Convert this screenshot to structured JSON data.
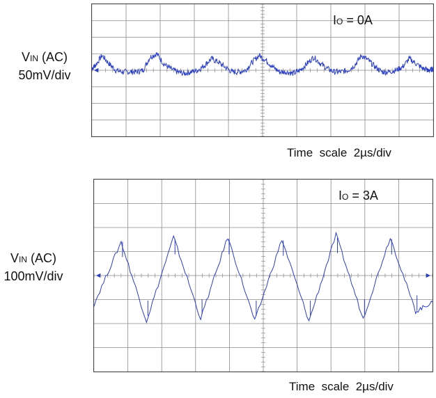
{
  "chart_data": [
    {
      "type": "line",
      "title": "",
      "annotation": {
        "prefix": "I",
        "sub": "O",
        "value": " = 0A"
      },
      "ylabel": {
        "main": "V",
        "sub": "IN",
        "rest": " (AC)",
        "scale": "50mV/div"
      },
      "xlabel": "Time  scale  2µs/div",
      "grid": true,
      "xlim": [
        0,
        10
      ],
      "ylim": [
        -4,
        4
      ],
      "series": [
        {
          "x": [
            0,
            0.1,
            0.3,
            0.5,
            0.7,
            0.9,
            1.1,
            1.3,
            1.5,
            1.7,
            1.9,
            2.1,
            2.3,
            2.5,
            2.7,
            2.9,
            3.1,
            3.3,
            3.5,
            3.7,
            3.9,
            4.1,
            4.3,
            4.5,
            4.7,
            4.9,
            5.1,
            5.3,
            5.5,
            5.7,
            5.9,
            6.1,
            6.3,
            6.5,
            6.7,
            6.9,
            7.1,
            7.3,
            7.5,
            7.7,
            7.9,
            8.1,
            8.3,
            8.5,
            8.7,
            8.9,
            9.1,
            9.3,
            9.5,
            9.7,
            9.9,
            10
          ],
          "values": [
            0.1,
            0.3,
            0.9,
            0.4,
            0,
            -0.1,
            -0.1,
            -0.1,
            0,
            0.8,
            1,
            0.4,
            0.1,
            -0.1,
            -0.2,
            -0.1,
            0,
            0.3,
            0.7,
            0.5,
            0.2,
            -0.1,
            -0.1,
            0,
            0.5,
            0.9,
            0.6,
            0.2,
            -0.1,
            -0.1,
            -0.2,
            0,
            0.4,
            0.8,
            0.4,
            0.1,
            -0.1,
            -0.1,
            0,
            0.3,
            0.9,
            0.6,
            0.2,
            -0.1,
            -0.1,
            0,
            0.2,
            0.7,
            0.4,
            0.1,
            0,
            0.1
          ]
        }
      ],
      "colors": {
        "trace": "#2b3fc2",
        "grid": "#8a8a8a",
        "frame": "#444444"
      }
    },
    {
      "type": "line",
      "title": "",
      "annotation": {
        "prefix": "I",
        "sub": "O",
        "value": " = 3A"
      },
      "ylabel": {
        "main": "V",
        "sub": "IN",
        "rest": " (AC)",
        "scale": "100mV/div"
      },
      "xlabel": "Time  scale  2µs/div",
      "grid": true,
      "xlim": [
        0,
        10
      ],
      "ylim": [
        -4,
        4
      ],
      "series": [
        {
          "x": [
            0,
            0.8,
            1.55,
            2.35,
            3.15,
            3.95,
            4.75,
            5.55,
            6.35,
            7.15,
            7.95,
            8.75,
            9.5,
            10
          ],
          "values": [
            -1.2,
            1.4,
            -1.9,
            1.6,
            -1.8,
            1.6,
            -1.9,
            1.5,
            -1.9,
            1.7,
            -1.8,
            1.6,
            -1.5,
            -1.1
          ]
        }
      ],
      "colors": {
        "trace": "#2b3fc2",
        "grid": "#8a8a8a",
        "frame": "#444444"
      }
    }
  ]
}
